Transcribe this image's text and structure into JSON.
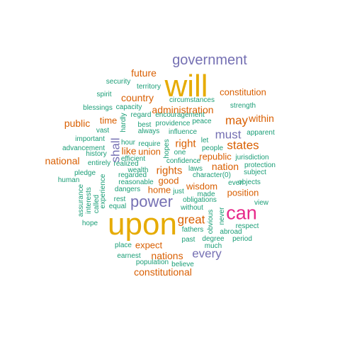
{
  "palette": {
    "green": "#1b9e77",
    "orange": "#d95f02",
    "purple": "#7570b3",
    "magenta": "#e7298a",
    "gold": "#e6ab02"
  },
  "words": [
    {
      "text": "government",
      "color": "purple",
      "weight": 4
    },
    {
      "text": "will",
      "color": "gold",
      "weight": 6
    },
    {
      "text": "upon",
      "color": "gold",
      "weight": 6
    },
    {
      "text": "can",
      "color": "magenta",
      "weight": 5
    },
    {
      "text": "power",
      "color": "purple",
      "weight": 4
    },
    {
      "text": "every",
      "color": "purple",
      "weight": 3
    },
    {
      "text": "must",
      "color": "purple",
      "weight": 3
    },
    {
      "text": "shall",
      "color": "purple",
      "weight": 3
    },
    {
      "text": "future",
      "color": "orange",
      "weight": 2
    },
    {
      "text": "constitution",
      "color": "orange",
      "weight": 2
    },
    {
      "text": "country",
      "color": "orange",
      "weight": 2
    },
    {
      "text": "administration",
      "color": "orange",
      "weight": 2
    },
    {
      "text": "may",
      "color": "orange",
      "weight": 2
    },
    {
      "text": "states",
      "color": "orange",
      "weight": 2
    },
    {
      "text": "within",
      "color": "orange",
      "weight": 2
    },
    {
      "text": "public",
      "color": "orange",
      "weight": 2
    },
    {
      "text": "time",
      "color": "orange",
      "weight": 2
    },
    {
      "text": "right",
      "color": "orange",
      "weight": 2
    },
    {
      "text": "national",
      "color": "orange",
      "weight": 2
    },
    {
      "text": "like",
      "color": "orange",
      "weight": 2
    },
    {
      "text": "union",
      "color": "orange",
      "weight": 2
    },
    {
      "text": "rights",
      "color": "orange",
      "weight": 2
    },
    {
      "text": "nation",
      "color": "orange",
      "weight": 2
    },
    {
      "text": "republic",
      "color": "orange",
      "weight": 2
    },
    {
      "text": "good",
      "color": "orange",
      "weight": 2
    },
    {
      "text": "home",
      "color": "orange",
      "weight": 2
    },
    {
      "text": "wisdom",
      "color": "orange",
      "weight": 2
    },
    {
      "text": "position",
      "color": "orange",
      "weight": 2
    },
    {
      "text": "great",
      "color": "orange",
      "weight": 2
    },
    {
      "text": "expect",
      "color": "orange",
      "weight": 2
    },
    {
      "text": "nations",
      "color": "orange",
      "weight": 2
    },
    {
      "text": "constitutional",
      "color": "orange",
      "weight": 2
    },
    {
      "text": "security",
      "color": "green",
      "weight": 1
    },
    {
      "text": "territory",
      "color": "green",
      "weight": 1
    },
    {
      "text": "spirit",
      "color": "green",
      "weight": 1
    },
    {
      "text": "blessings",
      "color": "green",
      "weight": 1
    },
    {
      "text": "capacity",
      "color": "green",
      "weight": 1
    },
    {
      "text": "circumstances",
      "color": "green",
      "weight": 1
    },
    {
      "text": "encouragement",
      "color": "green",
      "weight": 1
    },
    {
      "text": "strength",
      "color": "green",
      "weight": 1
    },
    {
      "text": "regard",
      "color": "green",
      "weight": 1
    },
    {
      "text": "hardly",
      "color": "green",
      "weight": 1
    },
    {
      "text": "best",
      "color": "green",
      "weight": 1
    },
    {
      "text": "providence",
      "color": "green",
      "weight": 1
    },
    {
      "text": "peace",
      "color": "green",
      "weight": 1
    },
    {
      "text": "vast",
      "color": "green",
      "weight": 1
    },
    {
      "text": "always",
      "color": "green",
      "weight": 1
    },
    {
      "text": "influence",
      "color": "green",
      "weight": 1
    },
    {
      "text": "apparent",
      "color": "green",
      "weight": 1
    },
    {
      "text": "important",
      "color": "green",
      "weight": 1
    },
    {
      "text": "hour",
      "color": "green",
      "weight": 1
    },
    {
      "text": "require",
      "color": "green",
      "weight": 1
    },
    {
      "text": "let",
      "color": "green",
      "weight": 1
    },
    {
      "text": "advancement",
      "color": "green",
      "weight": 1
    },
    {
      "text": "hopes",
      "color": "green",
      "weight": 1
    },
    {
      "text": "one",
      "color": "green",
      "weight": 1
    },
    {
      "text": "people",
      "color": "green",
      "weight": 1
    },
    {
      "text": "history",
      "color": "green",
      "weight": 1
    },
    {
      "text": "efficient",
      "color": "green",
      "weight": 1
    },
    {
      "text": "character(0)",
      "color": "green",
      "weight": 1
    },
    {
      "text": "jurisdiction",
      "color": "green",
      "weight": 1
    },
    {
      "text": "entirely",
      "color": "green",
      "weight": 1
    },
    {
      "text": "realized",
      "color": "green",
      "weight": 1
    },
    {
      "text": "confidence",
      "color": "green",
      "weight": 1
    },
    {
      "text": "protection",
      "color": "green",
      "weight": 1
    },
    {
      "text": "pledge",
      "color": "green",
      "weight": 1
    },
    {
      "text": "wealth",
      "color": "green",
      "weight": 1
    },
    {
      "text": "laws",
      "color": "green",
      "weight": 1
    },
    {
      "text": "subject",
      "color": "green",
      "weight": 1
    },
    {
      "text": "human",
      "color": "green",
      "weight": 1
    },
    {
      "text": "regarded",
      "color": "green",
      "weight": 1
    },
    {
      "text": "experience",
      "color": "green",
      "weight": 1
    },
    {
      "text": "reasonable",
      "color": "green",
      "weight": 1
    },
    {
      "text": "even",
      "color": "green",
      "weight": 1
    },
    {
      "text": "objects",
      "color": "green",
      "weight": 1
    },
    {
      "text": "assurance",
      "color": "green",
      "weight": 1
    },
    {
      "text": "interests",
      "color": "green",
      "weight": 1
    },
    {
      "text": "called",
      "color": "green",
      "weight": 1
    },
    {
      "text": "dangers",
      "color": "green",
      "weight": 1
    },
    {
      "text": "just",
      "color": "green",
      "weight": 1
    },
    {
      "text": "made",
      "color": "green",
      "weight": 1
    },
    {
      "text": "rest",
      "color": "green",
      "weight": 1
    },
    {
      "text": "obligations",
      "color": "green",
      "weight": 1
    },
    {
      "text": "view",
      "color": "green",
      "weight": 1
    },
    {
      "text": "equal",
      "color": "green",
      "weight": 1
    },
    {
      "text": "without",
      "color": "green",
      "weight": 1
    },
    {
      "text": "never",
      "color": "green",
      "weight": 1
    },
    {
      "text": "abroad",
      "color": "green",
      "weight": 1
    },
    {
      "text": "hope",
      "color": "green",
      "weight": 1
    },
    {
      "text": "fathers",
      "color": "green",
      "weight": 1
    },
    {
      "text": "obvious",
      "color": "green",
      "weight": 1
    },
    {
      "text": "respect",
      "color": "green",
      "weight": 1
    },
    {
      "text": "past",
      "color": "green",
      "weight": 1
    },
    {
      "text": "degree",
      "color": "green",
      "weight": 1
    },
    {
      "text": "period",
      "color": "green",
      "weight": 1
    },
    {
      "text": "place",
      "color": "green",
      "weight": 1
    },
    {
      "text": "much",
      "color": "green",
      "weight": 1
    },
    {
      "text": "earnest",
      "color": "green",
      "weight": 1
    },
    {
      "text": "population",
      "color": "green",
      "weight": 1
    },
    {
      "text": "believe",
      "color": "green",
      "weight": 1
    }
  ]
}
